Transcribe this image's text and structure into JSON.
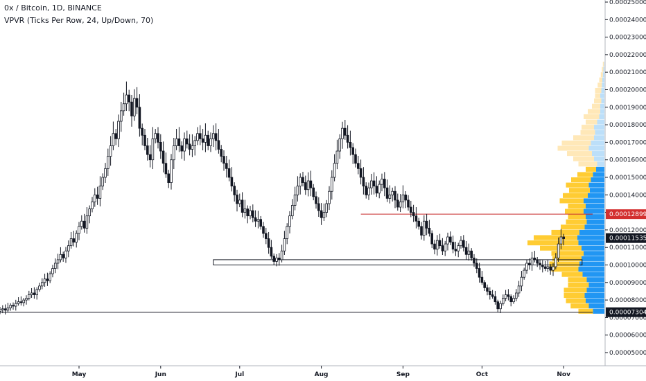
{
  "header": {
    "title": "0x / Bitcoin, 1D, BINANCE",
    "indicator": "VPVR (Ticks Per Row, 24, Up/Down, 70)"
  },
  "colors": {
    "candle": "#131722",
    "vp_up": "#2196f3",
    "vp_down": "#ffcc33",
    "vp_up_faded": "#bcdff9",
    "vp_down_faded": "#ffe8b8",
    "resistance_line": "#c62828",
    "badge_red": "#d32f2f",
    "badge_dark": "#131722"
  },
  "chart_data": {
    "type": "candlestick",
    "symbol": "0x / Bitcoin",
    "interval": "1D",
    "exchange": "BINANCE",
    "yaxis_labels": [
      "0.00025000",
      "0.00024000",
      "0.00023000",
      "0.00022000",
      "0.00021000",
      "0.00020000",
      "0.00019000",
      "0.00018000",
      "0.00017000",
      "0.00016000",
      "0.00015000",
      "0.00014000",
      "0.00013000",
      "0.00012000",
      "0.00011000",
      "0.00010000",
      "0.00009000",
      "0.00008000",
      "0.00007000",
      "0.00006000",
      "0.00005000"
    ],
    "yaxis_values": [
      0.00025,
      0.00024,
      0.00023,
      0.00022,
      0.00021,
      0.0002,
      0.00019,
      0.00018,
      0.00017,
      0.00016,
      0.00015,
      0.00014,
      0.00013,
      0.00012,
      0.00011,
      0.0001,
      9e-05,
      8e-05,
      7e-05,
      6e-05,
      5e-05
    ],
    "x_ticks": [
      {
        "label": "May",
        "day": 0
      },
      {
        "label": "Jun",
        "day": 31
      },
      {
        "label": "Jul",
        "day": 61
      },
      {
        "label": "Aug",
        "day": 92
      },
      {
        "label": "Sep",
        "day": 123
      },
      {
        "label": "Oct",
        "day": 153
      },
      {
        "label": "Nov",
        "day": 184
      }
    ],
    "price_badges": [
      {
        "label": "0.00012899",
        "value": 0.00012899,
        "style": "red"
      },
      {
        "label": "0.00011535",
        "value": 0.00011535,
        "style": "dark"
      },
      {
        "label": "0.00007304",
        "value": 7.304e-05,
        "style": "dark"
      }
    ],
    "lines": [
      {
        "name": "resistance",
        "value": 0.00012899,
        "from_day": 107,
        "to_day": 195
      },
      {
        "name": "support",
        "value": 7.304e-05,
        "from_day": -31,
        "to_day": 195
      }
    ],
    "zone": {
      "low": 0.0001,
      "high": 0.000103,
      "from_day": 51,
      "to_day": 191
    },
    "closes": [
      7.35e-05,
      7.45e-05,
      7.5e-05,
      7.42e-05,
      7.55e-05,
      7.7e-05,
      7.65e-05,
      7.8e-05,
      7.9e-05,
      7.85e-05,
      8e-05,
      8.1e-05,
      8.3e-05,
      8.4e-05,
      8.3e-05,
      8.6e-05,
      8.8e-05,
      9e-05,
      9.2e-05,
      9.1e-05,
      9.5e-05,
      9.8e-05,
      0.000101,
      0.000103,
      0.000106,
      0.000104,
      0.000108,
      0.000111,
      0.000115,
      0.000113,
      0.000118,
      0.000122,
      0.000125,
      0.000121,
      0.000128,
      0.000132,
      0.000136,
      0.00014,
      0.000138,
      0.000145,
      0.00015,
      0.000155,
      0.000162,
      0.000168,
      0.000175,
      0.000172,
      0.000182,
      0.000188,
      0.000192,
      0.000197,
      0.000193,
      0.000185,
      0.000195,
      0.00019,
      0.000178,
      0.000174,
      0.000168,
      0.000163,
      0.00016,
      0.000172,
      0.000175,
      0.00017,
      0.000165,
      0.000158,
      0.000152,
      0.000147,
      0.00016,
      0.000168,
      0.000172,
      0.000168,
      0.000165,
      0.000172,
      0.000169,
      0.000166,
      0.000168,
      0.000171,
      0.000175,
      0.000172,
      0.00017,
      0.000174,
      0.000168,
      0.000172,
      0.000175,
      0.000171,
      0.000166,
      0.000162,
      0.000158,
      0.000155,
      0.00015,
      0.000145,
      0.00014,
      0.000135,
      0.000137,
      0.00013,
      0.000132,
      0.000128,
      0.000131,
      0.000127,
      0.000125,
      0.000126,
      0.000122,
      0.000118,
      0.000115,
      0.00011,
      0.000105,
      0.000102,
      0.000104,
      0.000103,
      0.000108,
      0.000115,
      0.000122,
      0.000128,
      0.000134,
      0.00014,
      0.000145,
      0.00015,
      0.000147,
      0.000143,
      0.000148,
      0.000144,
      0.000139,
      0.000135,
      0.000131,
      0.000127,
      0.00013,
      0.000135,
      0.000142,
      0.00015,
      0.000158,
      0.000165,
      0.000172,
      0.000178,
      0.000174,
      0.00017,
      0.000167,
      0.000163,
      0.000158,
      0.000155,
      0.00015,
      0.000145,
      0.00014,
      0.000144,
      0.000148,
      0.000145,
      0.000141,
      0.000146,
      0.000149,
      0.000144,
      0.000138,
      0.00014,
      0.000142,
      0.000137,
      0.000133,
      0.000136,
      0.00014,
      0.000137,
      0.000133,
      0.00013,
      0.000128,
      0.000125,
      0.000122,
      0.000117,
      0.000125,
      0.000121,
      0.000118,
      0.000112,
      0.000109,
      0.000114,
      0.000111,
      0.000108,
      0.000112,
      0.000116,
      0.000113,
      0.000109,
      0.000108,
      0.000111,
      0.000114,
      0.00011,
      0.000106,
      0.000108,
      0.000104,
      0.000101,
      9.8e-05,
      9.3e-05,
      9e-05,
      8.7e-05,
      8.5e-05,
      8.3e-05,
      8.2e-05,
      7.9e-05,
      7.5e-05,
      7.8e-05,
      8.1e-05,
      8.3e-05,
      8.2e-05,
      7.9e-05,
      8.1e-05,
      8.4e-05,
      8.8e-05,
      9.3e-05,
      9.7e-05,
      0.000101,
      0.0001,
      0.000104,
      0.000103,
      0.000101,
      0.0001,
      9.9e-05,
      9.8e-05,
      9.9e-05,
      9.7e-05,
      9.9e-05,
      0.000104,
      0.000112,
      0.000116,
      0.000115
    ],
    "volume_profile": [
      {
        "low": 7.2e-05,
        "up": 22,
        "down": 28
      },
      {
        "low": 7.5e-05,
        "up": 30,
        "down": 35
      },
      {
        "low": 7.8e-05,
        "up": 36,
        "down": 38
      },
      {
        "low": 8.1e-05,
        "up": 38,
        "down": 40
      },
      {
        "low": 8.4e-05,
        "up": 34,
        "down": 44
      },
      {
        "low": 8.7e-05,
        "up": 30,
        "down": 40
      },
      {
        "low": 9e-05,
        "up": 34,
        "down": 36
      },
      {
        "low": 9.3e-05,
        "up": 42,
        "down": 40
      },
      {
        "low": 9.6e-05,
        "up": 50,
        "down": 52
      },
      {
        "low": 9.9e-05,
        "up": 48,
        "down": 58
      },
      {
        "low": 0.000102,
        "up": 44,
        "down": 56
      },
      {
        "low": 0.000105,
        "up": 40,
        "down": 62
      },
      {
        "low": 0.000108,
        "up": 44,
        "down": 80
      },
      {
        "low": 0.000111,
        "up": 50,
        "down": 98
      },
      {
        "low": 0.000114,
        "up": 52,
        "down": 84
      },
      {
        "low": 0.000117,
        "up": 48,
        "down": 54
      },
      {
        "low": 0.00012,
        "up": 38,
        "down": 46
      },
      {
        "low": 0.000123,
        "up": 34,
        "down": 40
      },
      {
        "low": 0.000126,
        "up": 36,
        "down": 34
      },
      {
        "low": 0.000129,
        "up": 40,
        "down": 36
      },
      {
        "low": 0.000132,
        "up": 36,
        "down": 34
      },
      {
        "low": 0.000135,
        "up": 40,
        "down": 46
      },
      {
        "low": 0.000138,
        "up": 32,
        "down": 48
      },
      {
        "low": 0.000141,
        "up": 28,
        "down": 40
      },
      {
        "low": 0.000144,
        "up": 30,
        "down": 44
      },
      {
        "low": 0.000147,
        "up": 26,
        "down": 38
      },
      {
        "low": 0.00015,
        "up": 22,
        "down": 30
      },
      {
        "low": 0.000153,
        "up": 16,
        "down": 20
      },
      {
        "low": 0.000156,
        "up": 14,
        "down": 36,
        "faded": true
      },
      {
        "low": 0.000159,
        "up": 20,
        "down": 40,
        "faded": true
      },
      {
        "low": 0.000162,
        "up": 24,
        "down": 48,
        "faded": true
      },
      {
        "low": 0.000165,
        "up": 30,
        "down": 60,
        "faded": true
      },
      {
        "low": 0.000168,
        "up": 26,
        "down": 56,
        "faded": true
      },
      {
        "low": 0.000171,
        "up": 20,
        "down": 40,
        "faded": true
      },
      {
        "low": 0.000174,
        "up": 18,
        "down": 28,
        "faded": true
      },
      {
        "low": 0.000177,
        "up": 20,
        "down": 24,
        "faded": true
      },
      {
        "low": 0.00018,
        "up": 14,
        "down": 22,
        "faded": true
      },
      {
        "low": 0.000183,
        "up": 10,
        "down": 30,
        "faded": true
      },
      {
        "low": 0.000186,
        "up": 8,
        "down": 24,
        "faded": true
      },
      {
        "low": 0.000189,
        "up": 8,
        "down": 16,
        "faded": true
      },
      {
        "low": 0.000192,
        "up": 6,
        "down": 14,
        "faded": true
      },
      {
        "low": 0.000195,
        "up": 8,
        "down": 10,
        "faded": true
      },
      {
        "low": 0.000198,
        "up": 6,
        "down": 12,
        "faded": true
      },
      {
        "low": 0.000201,
        "up": 5,
        "down": 8,
        "faded": true
      },
      {
        "low": 0.000204,
        "up": 4,
        "down": 6,
        "faded": true
      },
      {
        "low": 0.000207,
        "up": 3,
        "down": 4,
        "faded": true
      },
      {
        "low": 0.00021,
        "up": 2,
        "down": 3,
        "faded": true
      },
      {
        "low": 0.000213,
        "up": 1,
        "down": 2,
        "faded": true
      }
    ]
  }
}
